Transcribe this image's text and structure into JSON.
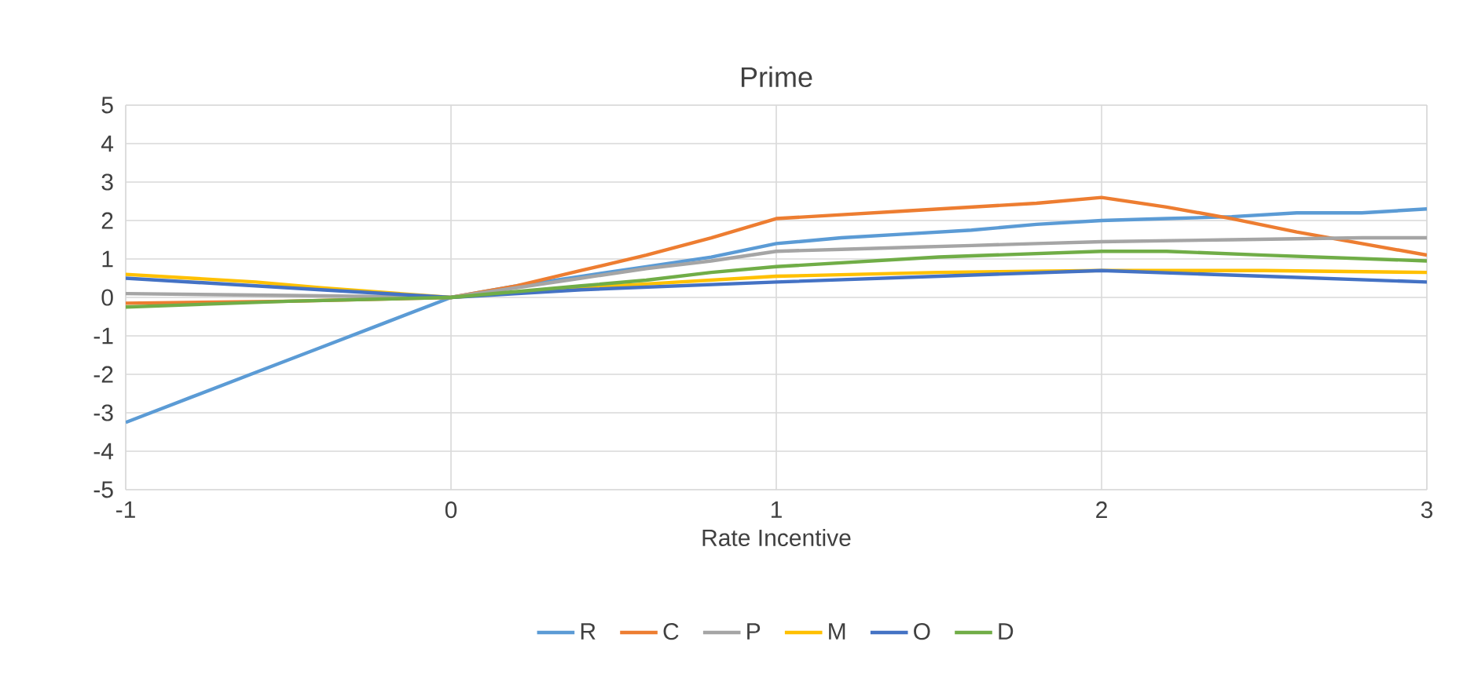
{
  "chart_data": {
    "type": "line",
    "title": "Prime",
    "xlabel": "Rate Incentive",
    "xlim": [
      -1,
      3
    ],
    "xticks": [
      -1,
      0,
      1,
      2,
      3
    ],
    "ylim": [
      -5,
      5
    ],
    "yticks": [
      -5,
      -4,
      -3,
      -2,
      -1,
      0,
      1,
      2,
      3,
      4,
      5
    ],
    "grid": true,
    "legend": "bottom",
    "marker": "none",
    "line_style": "solid",
    "series": [
      {
        "name": "R",
        "color": "#5b9bd5",
        "x": [
          -1,
          -0.8,
          -0.6,
          -0.4,
          -0.2,
          0,
          0.2,
          0.4,
          0.6,
          0.8,
          1,
          1.2,
          1.4,
          1.6,
          1.8,
          2,
          2.2,
          2.4,
          2.6,
          2.8,
          3
        ],
        "values": [
          -3.25,
          -2.6,
          -1.95,
          -1.3,
          -0.65,
          0,
          0.3,
          0.55,
          0.8,
          1.05,
          1.4,
          1.55,
          1.65,
          1.75,
          1.9,
          2.0,
          2.05,
          2.1,
          2.2,
          2.2,
          2.3
        ]
      },
      {
        "name": "C",
        "color": "#ed7d31",
        "x": [
          -1,
          -0.5,
          0,
          0.2,
          0.4,
          0.6,
          0.8,
          1,
          1.2,
          1.4,
          1.6,
          1.8,
          2,
          2.2,
          2.4,
          2.6,
          2.8,
          3
        ],
        "values": [
          -0.15,
          -0.1,
          0,
          0.3,
          0.7,
          1.1,
          1.55,
          2.05,
          2.15,
          2.25,
          2.35,
          2.45,
          2.6,
          2.35,
          2.05,
          1.7,
          1.4,
          1.1
        ]
      },
      {
        "name": "P",
        "color": "#a5a5a5",
        "x": [
          -1,
          -0.5,
          0,
          0.2,
          0.4,
          0.6,
          0.8,
          1,
          1.2,
          1.4,
          1.6,
          1.8,
          2,
          2.4,
          2.8,
          3
        ],
        "values": [
          0.1,
          0.05,
          0,
          0.25,
          0.5,
          0.75,
          0.95,
          1.2,
          1.25,
          1.3,
          1.35,
          1.4,
          1.45,
          1.5,
          1.55,
          1.55
        ]
      },
      {
        "name": "M",
        "color": "#ffc000",
        "x": [
          -1,
          -0.6,
          -0.4,
          0,
          0.4,
          0.6,
          1,
          1.5,
          2,
          2.5,
          3
        ],
        "values": [
          0.6,
          0.4,
          0.25,
          0,
          0.25,
          0.35,
          0.55,
          0.65,
          0.7,
          0.7,
          0.65
        ]
      },
      {
        "name": "O",
        "color": "#4472c4",
        "x": [
          -1,
          -0.6,
          -0.4,
          0,
          0.4,
          1,
          1.5,
          2,
          2.5,
          3
        ],
        "values": [
          0.5,
          0.3,
          0.2,
          0,
          0.2,
          0.4,
          0.55,
          0.7,
          0.55,
          0.4
        ]
      },
      {
        "name": "D",
        "color": "#70ad47",
        "x": [
          -1,
          -0.5,
          0,
          0.4,
          0.6,
          0.8,
          1,
          1.5,
          2,
          2.2,
          2.5,
          3
        ],
        "values": [
          -0.25,
          -0.1,
          0,
          0.3,
          0.45,
          0.65,
          0.8,
          1.05,
          1.2,
          1.2,
          1.1,
          0.95
        ]
      }
    ]
  }
}
